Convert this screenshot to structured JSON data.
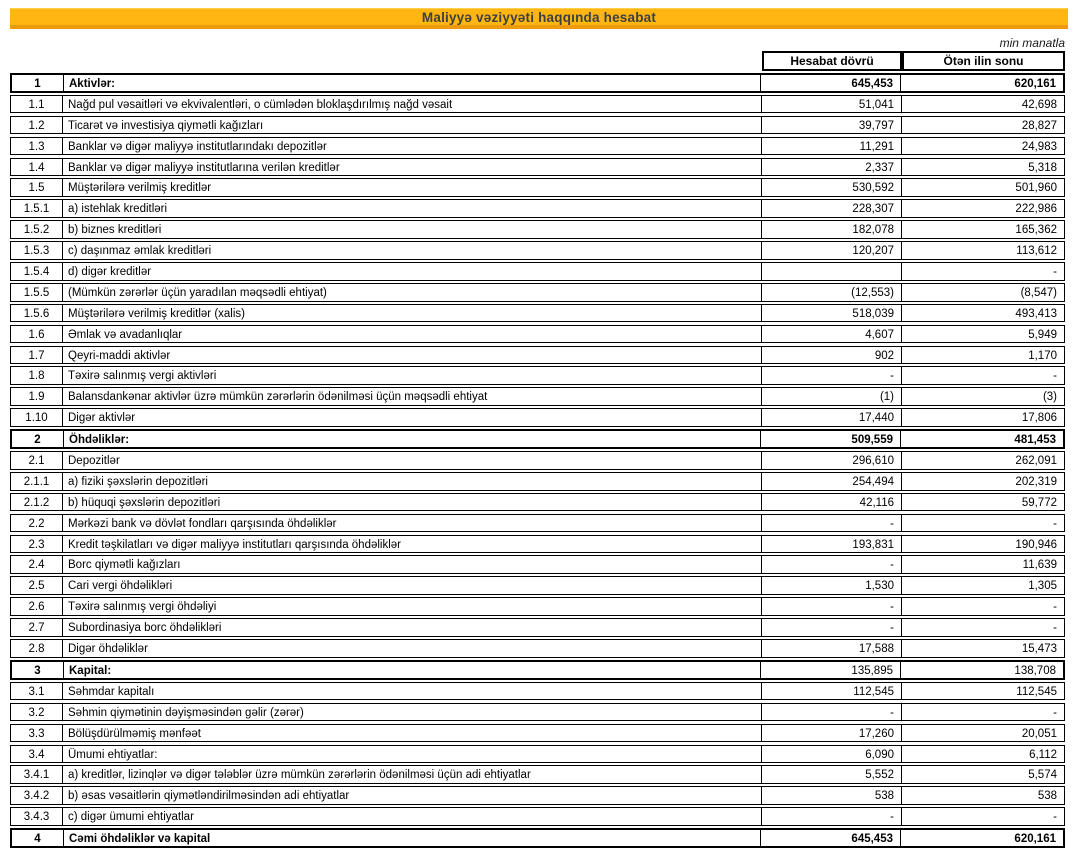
{
  "report": {
    "title": "Maliyyə vəziyyəti haqqında hesabat",
    "unit_note": "min manatla",
    "banner_color": "#FFB612",
    "banner_edge_color": "#EE9A0D",
    "title_color": "#3F3F3F"
  },
  "table": {
    "columns": {
      "current": "Hesabat dövrü",
      "previous": "Ötən ilin sonu"
    },
    "rows": [
      {
        "num": "1",
        "label": "Aktivlər:",
        "current": "645,453",
        "previous": "620,161",
        "style": "section"
      },
      {
        "num": "1.1",
        "label": "Nağd pul vəsaitləri və ekvivalentləri, o cümlədən bloklaşdırılmış nağd vəsait",
        "current": "51,041",
        "previous": "42,698"
      },
      {
        "num": "1.2",
        "label": "Ticarət və investisiya qiymətli kağızları",
        "current": "39,797",
        "previous": "28,827"
      },
      {
        "num": "1.3",
        "label": "Banklar və digər maliyyə institutlarındakı depozitlər",
        "current": "11,291",
        "previous": "24,983"
      },
      {
        "num": "1.4",
        "label": "Banklar və digər maliyyə institutlarına verilən kreditlər",
        "current": "2,337",
        "previous": "5,318"
      },
      {
        "num": "1.5",
        "label": "Müştərilərə verilmiş kreditlər",
        "current": "530,592",
        "previous": "501,960"
      },
      {
        "num": "1.5.1",
        "label": "a) istehlak kreditləri",
        "current": "228,307",
        "previous": "222,986"
      },
      {
        "num": "1.5.2",
        "label": "b) biznes kreditləri",
        "current": "182,078",
        "previous": "165,362"
      },
      {
        "num": "1.5.3",
        "label": "c) daşınmaz əmlak kreditləri",
        "current": "120,207",
        "previous": "113,612"
      },
      {
        "num": "1.5.4",
        "label": "d) digər kreditlər",
        "current": "",
        "previous": "-"
      },
      {
        "num": "1.5.5",
        "label": "(Mümkün zərərlər üçün yaradılan məqsədli ehtiyat)",
        "current": "(12,553)",
        "previous": "(8,547)"
      },
      {
        "num": "1.5.6",
        "label": "Müştərilərə verilmiş kreditlər (xalis)",
        "current": "518,039",
        "previous": "493,413"
      },
      {
        "num": "1.6",
        "label": "Əmlak və avadanlıqlar",
        "current": "4,607",
        "previous": "5,949"
      },
      {
        "num": "1.7",
        "label": "Qeyri-maddi aktivlər",
        "current": "902",
        "previous": "1,170"
      },
      {
        "num": "1.8",
        "label": "Təxirə salınmış vergi aktivləri",
        "current": "-",
        "previous": "-"
      },
      {
        "num": "1.9",
        "label": "Balansdankənar aktivlər üzrə mümkün zərərlərin ödənilməsi üçün məqsədli ehtiyat",
        "current": "(1)",
        "previous": "(3)"
      },
      {
        "num": "1.10",
        "label": "Digər aktivlər",
        "current": "17,440",
        "previous": "17,806"
      },
      {
        "num": "2",
        "label": "Öhdəliklər:",
        "current": "509,559",
        "previous": "481,453",
        "style": "section"
      },
      {
        "num": "2.1",
        "label": "Depozitlər",
        "current": "296,610",
        "previous": "262,091"
      },
      {
        "num": "2.1.1",
        "label": "a) fiziki şəxslərin depozitləri",
        "current": "254,494",
        "previous": "202,319"
      },
      {
        "num": "2.1.2",
        "label": "b) hüquqi şəxslərin depozitləri",
        "current": "42,116",
        "previous": "59,772"
      },
      {
        "num": "2.2",
        "label": "Mərkəzi bank və dövlət fondları qarşısında öhdəliklər",
        "current": "-",
        "previous": "-"
      },
      {
        "num": "2.3",
        "label": "Kredit təşkilatları və digər maliyyə institutları qarşısında öhdəliklər",
        "current": "193,831",
        "previous": "190,946"
      },
      {
        "num": "2.4",
        "label": "Borc qiymətli kağızları",
        "current": "-",
        "previous": "11,639"
      },
      {
        "num": "2.5",
        "label": "Cari vergi öhdəlikləri",
        "current": "1,530",
        "previous": "1,305"
      },
      {
        "num": "2.6",
        "label": "Təxirə salınmış vergi öhdəliyi",
        "current": "-",
        "previous": "-"
      },
      {
        "num": "2.7",
        "label": "Subordinasiya borc öhdəlikləri",
        "current": "-",
        "previous": "-"
      },
      {
        "num": "2.8",
        "label": "Digər öhdəliklər",
        "current": "17,588",
        "previous": "15,473"
      },
      {
        "num": "3",
        "label": "Kapital:",
        "current": "135,895",
        "previous": "138,708",
        "style": "section-label"
      },
      {
        "num": "3.1",
        "label": "Səhmdar kapitalı",
        "current": "112,545",
        "previous": "112,545"
      },
      {
        "num": "3.2",
        "label": "Səhmin qiymətinin dəyişməsindən gəlir (zərər)",
        "current": "-",
        "previous": "-"
      },
      {
        "num": "3.3",
        "label": "Bölüşdürülməmiş mənfəət",
        "current": "17,260",
        "previous": "20,051"
      },
      {
        "num": "3.4",
        "label": "Ümumi ehtiyatlar:",
        "current": "6,090",
        "previous": "6,112"
      },
      {
        "num": "3.4.1",
        "label": "a) kreditlər, lizinqlər və digər tələblər üzrə mümkün zərərlərin ödənilməsi üçün adi ehtiyatlar",
        "current": "5,552",
        "previous": "5,574"
      },
      {
        "num": "3.4.2",
        "label": "b) əsas vəsaitlərin qiymətləndirilməsindən adi ehtiyatlar",
        "current": "538",
        "previous": "538"
      },
      {
        "num": "3.4.3",
        "label": "c) digər ümumi ehtiyatlar",
        "current": "-",
        "previous": "-"
      },
      {
        "num": "4",
        "label": "Cəmi öhdəliklər və kapital",
        "current": "645,453",
        "previous": "620,161",
        "style": "section"
      }
    ]
  }
}
